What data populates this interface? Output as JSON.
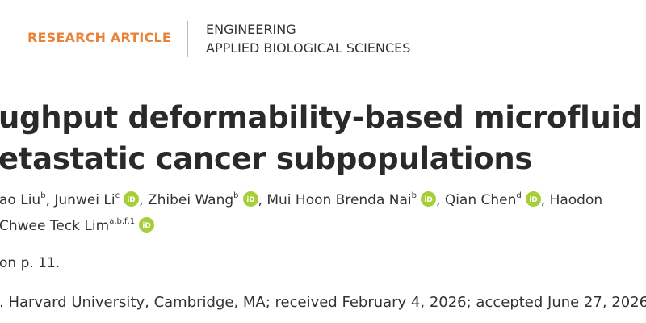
{
  "header": {
    "article_type": "RESEARCH ARTICLE",
    "sections": [
      "ENGINEERING",
      "APPLIED BIOLOGICAL SCIENCES"
    ]
  },
  "title": {
    "lines": [
      "ughput deformability-based microfluid",
      "etastatic cancer subpopulations"
    ]
  },
  "authors": {
    "lines": [
      [
        {
          "name": "ao Liu",
          "affil": "b",
          "orcid": false
        },
        {
          "name": ", Junwei Li",
          "affil": "c",
          "orcid": true
        },
        {
          "name": ", Zhibei Wang",
          "affil": "b",
          "orcid": true
        },
        {
          "name": ", Mui Hoon Brenda Nai",
          "affil": "b",
          "orcid": true
        },
        {
          "name": ", Qian Chen",
          "affil": "d",
          "orcid": true
        },
        {
          "name": ", Haodon",
          "affil": null,
          "orcid": false
        }
      ],
      [
        {
          "name": "Chwee Teck Lim",
          "affil": "a,b,f,1",
          "orcid": true
        }
      ]
    ]
  },
  "note": "on p. 11.",
  "editorial": ". Harvard University, Cambridge, MA; received February 4, 2026; accepted June 27, 2026"
}
